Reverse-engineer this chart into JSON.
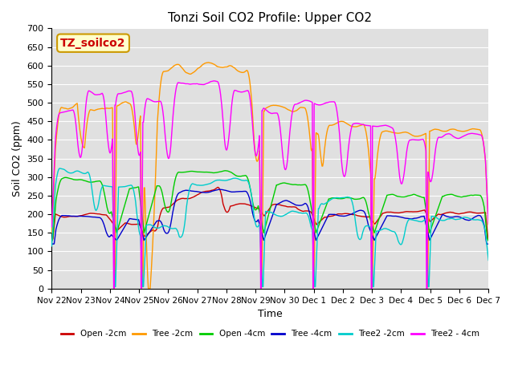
{
  "title": "Tonzi Soil CO2 Profile: Upper CO2",
  "xlabel": "Time",
  "ylabel": "Soil CO2 (ppm)",
  "ylim": [
    0,
    700
  ],
  "yticks": [
    0,
    50,
    100,
    150,
    200,
    250,
    300,
    350,
    400,
    450,
    500,
    550,
    600,
    650,
    700
  ],
  "legend_labels": [
    "Open -2cm",
    "Tree -2cm",
    "Open -4cm",
    "Tree -4cm",
    "Tree2 -2cm",
    "Tree2 - 4cm"
  ],
  "legend_colors": [
    "#cc0000",
    "#ff9900",
    "#00cc00",
    "#0000cc",
    "#00cccc",
    "#ff00ff"
  ],
  "watermark_text": "TZ_soilco2",
  "watermark_color": "#cc0000",
  "watermark_bg": "#ffffcc",
  "watermark_border": "#cc9900",
  "bg_color": "#e0e0e0",
  "n_points": 720,
  "x_tick_labels": [
    "Nov 22",
    "Nov 23",
    "Nov 24",
    "Nov 25",
    "Nov 26",
    "Nov 27",
    "Nov 28",
    "Nov 29",
    "Nov 30",
    "Dec 1",
    "Dec 2",
    "Dec 3",
    "Dec 4",
    "Dec 5",
    "Dec 6",
    "Dec 7"
  ],
  "x_tick_positions": [
    0,
    1,
    2,
    3,
    4,
    5,
    6,
    7,
    8,
    9,
    10,
    11,
    12,
    13,
    14,
    15
  ]
}
